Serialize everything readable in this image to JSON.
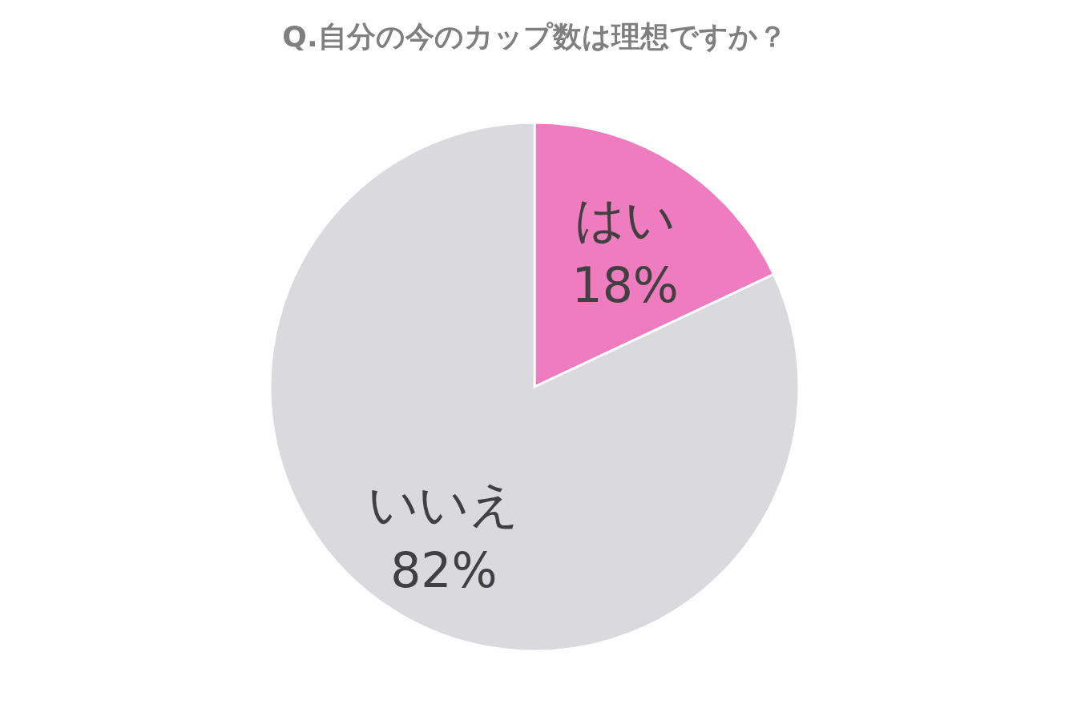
{
  "chart_data": {
    "type": "pie",
    "title": "Q.自分の今のカップ数は理想ですか？",
    "categories": [
      "はい",
      "いいえ"
    ],
    "values": [
      18,
      82
    ],
    "colors": [
      "#f07cc0",
      "#d9d9de"
    ],
    "value_labels": [
      "18%",
      "82%"
    ]
  }
}
